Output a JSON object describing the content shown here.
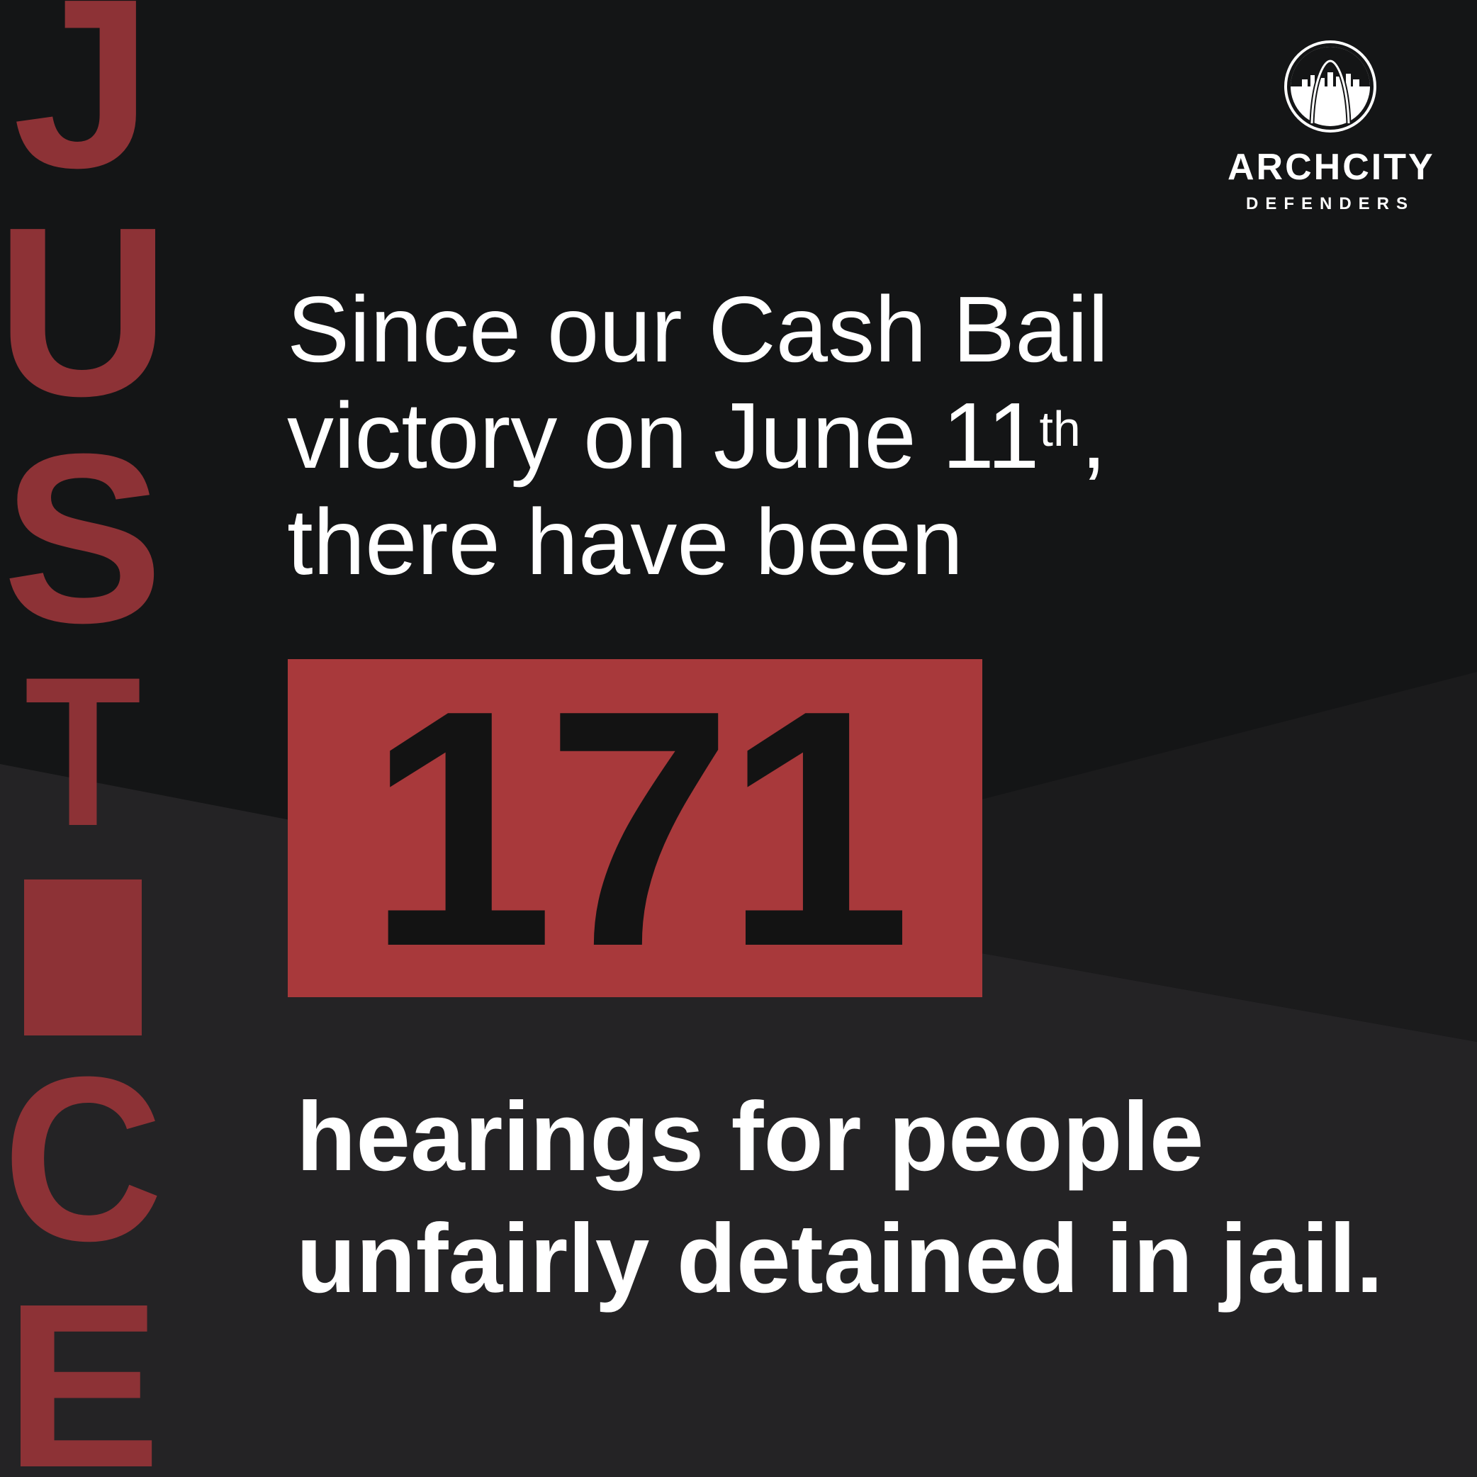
{
  "vertical_word": {
    "letters": [
      "J",
      "U",
      "S",
      "T",
      "I",
      "C",
      "E"
    ]
  },
  "logo": {
    "name": "ARCHCITY",
    "sub": "DEFENDERS",
    "icon": "arch-skyline-icon"
  },
  "intro": {
    "line1": "Since our Cash Bail",
    "line2_main": "victory on June 11",
    "line2_sup": "th",
    "line2_end": ",",
    "line3": "there have been"
  },
  "count": {
    "value": "171"
  },
  "outro": {
    "line1": "hearings for people",
    "line2": "unfairly detained in jail."
  },
  "colors": {
    "background": "#141516",
    "band": "#242325",
    "accent_red": "#a8393b",
    "letter_red": "#8d3236",
    "text": "#ffffff"
  }
}
